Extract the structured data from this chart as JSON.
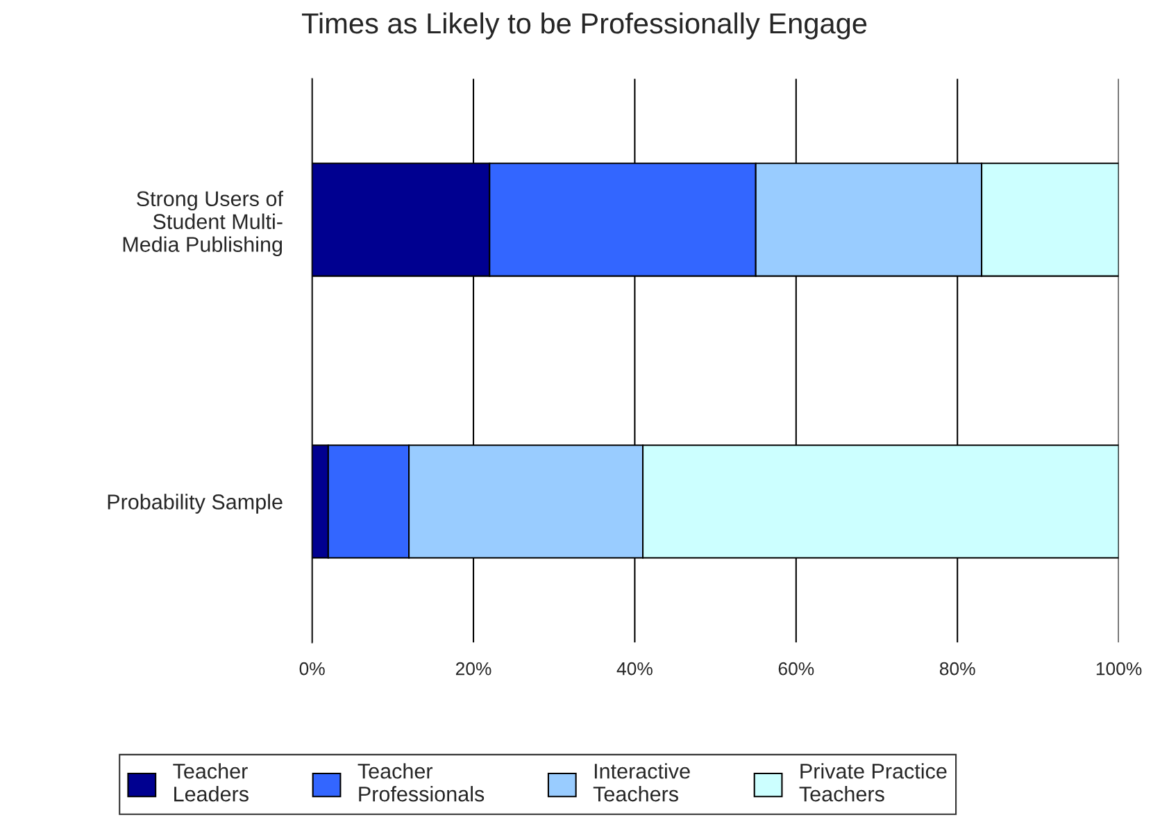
{
  "chart_data": {
    "type": "bar",
    "orientation": "horizontal",
    "stacked": true,
    "title": "Times as Likely to be Professionally Engage",
    "categories": [
      "Strong Users of\nStudent Multi-\nMedia Publishing",
      "Probability Sample"
    ],
    "series": [
      {
        "name": "Teacher\nLeaders",
        "color": "#000090",
        "values": [
          22,
          2
        ]
      },
      {
        "name": "Teacher\nProfessionals",
        "color": "#3366ff",
        "values": [
          33,
          10
        ]
      },
      {
        "name": "Interactive\nTeachers",
        "color": "#99ccff",
        "values": [
          28,
          29
        ]
      },
      {
        "name": "Private Practice\nTeachers",
        "color": "#ccffff",
        "values": [
          17,
          59
        ]
      }
    ],
    "xlim": [
      0,
      100
    ],
    "xticks": [
      {
        "value": 0,
        "label": "0%"
      },
      {
        "value": 20,
        "label": "20%"
      },
      {
        "value": 40,
        "label": "40%"
      },
      {
        "value": 60,
        "label": "60%"
      },
      {
        "value": 80,
        "label": "80%"
      },
      {
        "value": 100,
        "label": "100%"
      }
    ],
    "grid": "x",
    "legend": "bottom"
  }
}
